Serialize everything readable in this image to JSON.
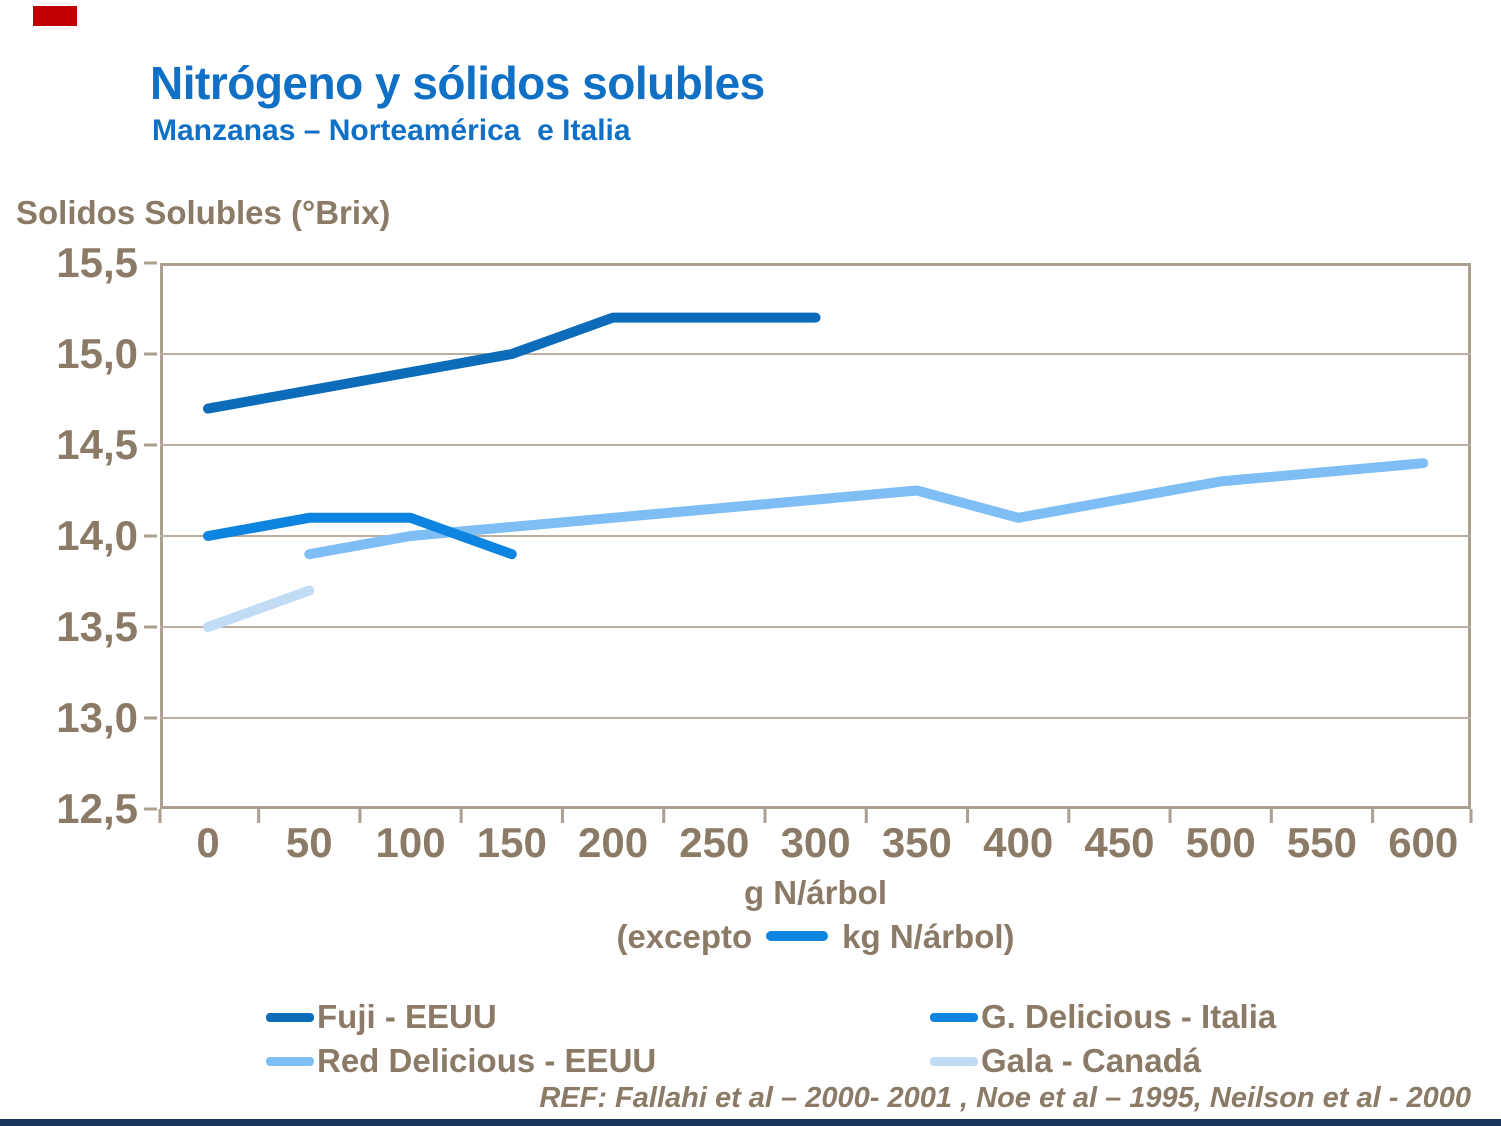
{
  "header": {
    "title": "Nitrógeno y sólidos solubles",
    "subtitle": "Manzanas – Norteamérica  e Italia"
  },
  "accents": {
    "title_color": "#1070c5",
    "text_color": "#8b7b66",
    "grid_color": "#bbafa2",
    "plot_border_color": "#ab9f90",
    "top_left_bar_color": "#c00000",
    "bottom_bar_color": "#17365d"
  },
  "chart_data": {
    "type": "line",
    "title": "Nitrógeno y sólidos solubles",
    "subtitle": "Manzanas – Norteamérica e Italia",
    "grid": true,
    "legend_position": "bottom",
    "y_axis": {
      "title": "Solidos Solubles (°Brix)",
      "range": [
        12.5,
        15.5
      ],
      "ticks": [
        {
          "value": 15.5,
          "label": "15,5"
        },
        {
          "value": 15.0,
          "label": "15,0"
        },
        {
          "value": 14.5,
          "label": "14,5"
        },
        {
          "value": 14.0,
          "label": "14,0"
        },
        {
          "value": 13.5,
          "label": "13,5"
        },
        {
          "value": 13.0,
          "label": "13,0"
        },
        {
          "value": 12.5,
          "label": "12,5"
        }
      ]
    },
    "x_axis": {
      "caption_line1": "g N/árbol",
      "caption_line2_prefix": "(excepto",
      "caption_line2_suffix": "kg N/árbol)",
      "caption_dash_color": "#0d85e0",
      "ticks": [
        0,
        50,
        100,
        150,
        200,
        250,
        300,
        350,
        400,
        450,
        500,
        550,
        600
      ]
    },
    "series": [
      {
        "name": "Fuji - EEUU",
        "color": "#0d6cba",
        "x": [
          0,
          150,
          200,
          300
        ],
        "y": [
          14.7,
          15.0,
          15.2,
          15.2
        ]
      },
      {
        "name": "G. Delicious - Italia",
        "color": "#0d85e0",
        "x": [
          0,
          50,
          100,
          150
        ],
        "y": [
          14.0,
          14.1,
          14.1,
          13.9
        ]
      },
      {
        "name": "Red Delicious - EEUU",
        "color": "#7fbef5",
        "x": [
          50,
          100,
          200,
          300,
          350,
          400,
          500,
          600
        ],
        "y": [
          13.9,
          14.0,
          14.1,
          14.2,
          14.25,
          14.1,
          14.3,
          14.4
        ]
      },
      {
        "name": "Gala - Canadá",
        "color": "#c3dcf5",
        "x": [
          0,
          50
        ],
        "y": [
          13.5,
          13.7
        ]
      }
    ]
  },
  "footer": {
    "ref": "REF: Fallahi et al – 2000- 2001 , Noe et al – 1995, Neilson et al - 2000"
  }
}
